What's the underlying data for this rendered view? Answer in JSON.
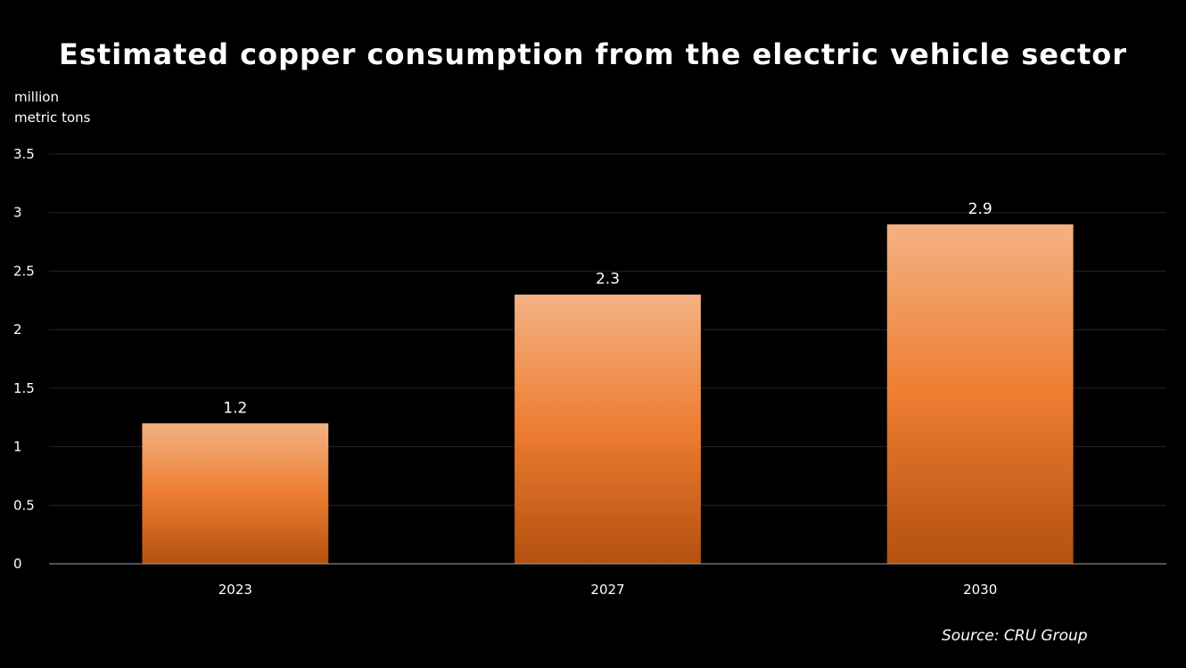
{
  "chart_data": {
    "type": "bar",
    "title": "Estimated copper consumption from the electric vehicle sector",
    "ylabel_lines": [
      "million",
      "metric tons"
    ],
    "xlabel": "",
    "categories": [
      "2023",
      "2027",
      "2030"
    ],
    "values": [
      1.2,
      2.3,
      2.9
    ],
    "data_labels": [
      "1.2",
      "2.3",
      "2.9"
    ],
    "ylim": [
      0,
      3.5
    ],
    "yticks": [
      0,
      0.5,
      1,
      1.5,
      2,
      2.5,
      3,
      3.5
    ],
    "ytick_labels": [
      "0",
      "0.5",
      "1",
      "1.5",
      "2",
      "2.5",
      "3",
      "3.5"
    ],
    "grid": true,
    "legend": "none",
    "colors": {
      "bar_top": "#F4B183",
      "bar_mid": "#ED7D31",
      "bar_bottom": "#B4500F",
      "background": "#000000",
      "grid": "#262626",
      "axis": "#A6A6A6"
    },
    "source": "Source: CRU Group"
  }
}
